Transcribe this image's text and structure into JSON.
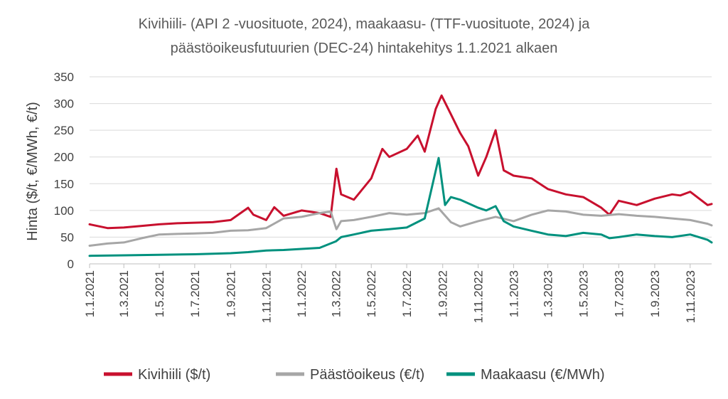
{
  "chart_data": {
    "type": "line",
    "title_lines": [
      "Kivihiili- (API 2 -vuosituote, 2024), maakaasu- (TTF-vuosituote, 2024) ja",
      "päästöoikeusfutuurien (DEC-24) hintakehitys 1.1.2021 alkaen"
    ],
    "ylabel": "Hinta ($/t, €/MWh, €/t)",
    "xlabel": "",
    "ylim": [
      0,
      350
    ],
    "yticks": [
      0,
      50,
      100,
      150,
      200,
      250,
      300,
      350
    ],
    "x_start": "1.1.2021",
    "x_end": "8.12.2023",
    "xticks": [
      "1.1.2021",
      "1.3.2021",
      "1.5.2021",
      "1.7.2021",
      "1.9.2021",
      "1.11.2021",
      "1.1.2022",
      "1.3.2022",
      "1.5.2022",
      "1.7.2022",
      "1.9.2022",
      "1.11.2022",
      "1.1.2023",
      "1.3.2023",
      "1.5.2023",
      "1.7.2023",
      "1.9.2023",
      "1.11.2023"
    ],
    "grid": true,
    "legend_position": "bottom",
    "series": [
      {
        "name": "Kivihiili ($/t)",
        "color": "#c8102e",
        "x": [
          "1.1.2021",
          "1.2.2021",
          "1.3.2021",
          "1.4.2021",
          "1.5.2021",
          "1.6.2021",
          "1.7.2021",
          "1.8.2021",
          "1.9.2021",
          "1.10.2021",
          "10.10.2021",
          "1.11.2021",
          "15.11.2021",
          "1.12.2021",
          "1.1.2022",
          "1.2.2022",
          "20.2.2022",
          "2.3.2022",
          "10.3.2022",
          "1.4.2022",
          "1.5.2022",
          "20.5.2022",
          "1.6.2022",
          "1.7.2022",
          "20.7.2022",
          "1.8.2022",
          "20.8.2022",
          "30.8.2022",
          "15.9.2022",
          "1.10.2022",
          "15.10.2022",
          "1.11.2022",
          "15.11.2022",
          "1.12.2022",
          "15.12.2022",
          "1.1.2023",
          "1.2.2023",
          "1.3.2023",
          "1.4.2023",
          "1.5.2023",
          "1.6.2023",
          "15.6.2023",
          "1.7.2023",
          "1.8.2023",
          "1.9.2023",
          "1.10.2023",
          "15.10.2023",
          "1.11.2023",
          "1.12.2023",
          "8.12.2023"
        ],
        "values": [
          74,
          67,
          68,
          71,
          74,
          76,
          77,
          78,
          82,
          105,
          92,
          82,
          106,
          90,
          100,
          95,
          88,
          178,
          130,
          120,
          160,
          215,
          200,
          215,
          240,
          210,
          290,
          315,
          280,
          245,
          220,
          165,
          200,
          250,
          175,
          165,
          160,
          140,
          130,
          125,
          105,
          92,
          118,
          110,
          122,
          130,
          128,
          135,
          110,
          112
        ]
      },
      {
        "name": "Päästöoikeus (€/t)",
        "color": "#a6a6a6",
        "x": [
          "1.1.2021",
          "1.2.2021",
          "1.3.2021",
          "1.4.2021",
          "1.5.2021",
          "1.6.2021",
          "1.7.2021",
          "1.8.2021",
          "1.9.2021",
          "1.10.2021",
          "1.11.2021",
          "1.12.2021",
          "1.1.2022",
          "1.2.2022",
          "20.2.2022",
          "2.3.2022",
          "10.3.2022",
          "1.4.2022",
          "1.5.2022",
          "1.6.2022",
          "1.7.2022",
          "1.8.2022",
          "25.8.2022",
          "15.9.2022",
          "1.10.2022",
          "1.11.2022",
          "1.12.2022",
          "1.1.2023",
          "1.2.2023",
          "1.3.2023",
          "1.4.2023",
          "1.5.2023",
          "1.6.2023",
          "1.7.2023",
          "1.8.2023",
          "1.9.2023",
          "1.10.2023",
          "1.11.2023",
          "1.12.2023",
          "8.12.2023"
        ],
        "values": [
          34,
          38,
          40,
          48,
          55,
          56,
          57,
          58,
          62,
          63,
          67,
          85,
          88,
          95,
          98,
          65,
          80,
          82,
          88,
          95,
          92,
          95,
          104,
          78,
          70,
          80,
          88,
          80,
          92,
          100,
          98,
          92,
          90,
          93,
          90,
          88,
          85,
          82,
          75,
          72
        ]
      },
      {
        "name": "Maakaasu (€/MWh)",
        "color": "#00917e",
        "x": [
          "1.1.2021",
          "1.3.2021",
          "1.5.2021",
          "1.7.2021",
          "1.9.2021",
          "1.10.2021",
          "1.11.2021",
          "1.12.2021",
          "1.1.2022",
          "1.2.2022",
          "1.3.2022",
          "10.3.2022",
          "1.4.2022",
          "1.5.2022",
          "1.6.2022",
          "1.7.2022",
          "1.8.2022",
          "25.8.2022",
          "5.9.2022",
          "15.9.2022",
          "1.10.2022",
          "1.11.2022",
          "15.11.2022",
          "1.12.2022",
          "15.12.2022",
          "1.1.2023",
          "1.2.2023",
          "1.3.2023",
          "1.4.2023",
          "1.5.2023",
          "1.6.2023",
          "15.6.2023",
          "1.7.2023",
          "1.8.2023",
          "1.9.2023",
          "1.10.2023",
          "1.11.2023",
          "1.12.2023",
          "8.12.2023"
        ],
        "values": [
          15,
          16,
          17,
          18,
          20,
          22,
          25,
          26,
          28,
          30,
          42,
          50,
          55,
          62,
          65,
          68,
          85,
          198,
          110,
          125,
          120,
          105,
          100,
          108,
          80,
          70,
          62,
          55,
          52,
          58,
          55,
          48,
          50,
          55,
          52,
          50,
          55,
          45,
          40
        ]
      }
    ]
  }
}
